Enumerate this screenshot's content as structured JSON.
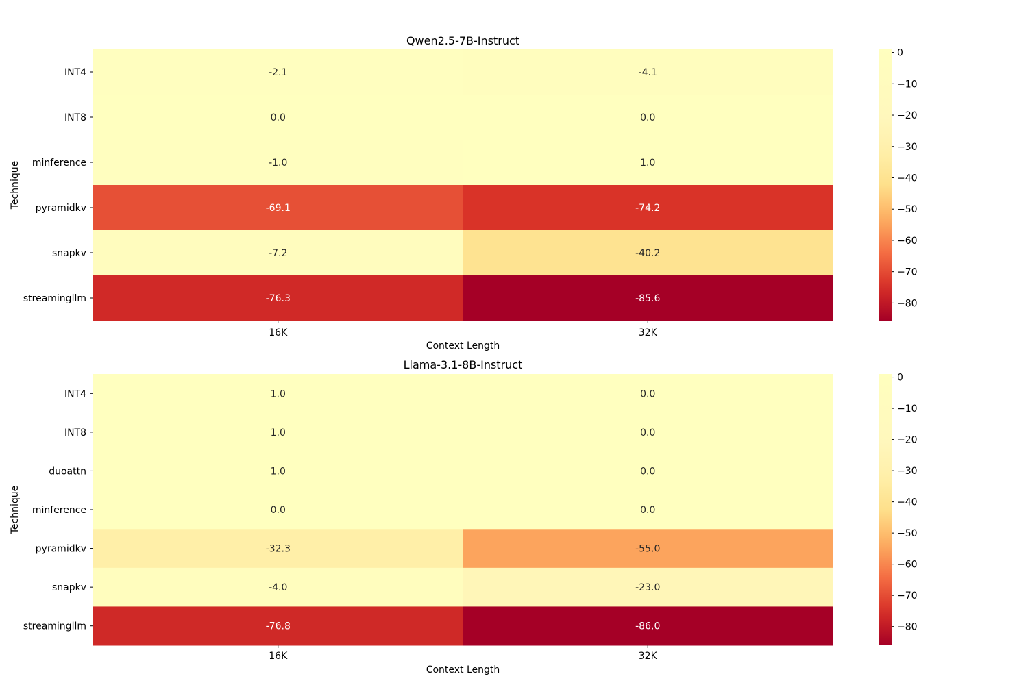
{
  "chart_data": [
    {
      "type": "heatmap",
      "title": "Qwen2.5-7B-Instruct",
      "xlabel": "Context Length",
      "ylabel": "Technique",
      "x": [
        "16K",
        "32K"
      ],
      "y": [
        "INT4",
        "INT8",
        "minference",
        "pyramidkv",
        "snapkv",
        "streamingllm"
      ],
      "values": [
        [
          -2.1,
          -4.1
        ],
        [
          0.0,
          0.0
        ],
        [
          -1.0,
          1.0
        ],
        [
          -69.1,
          -74.2
        ],
        [
          -7.2,
          -40.2
        ],
        [
          -76.3,
          -85.6
        ]
      ],
      "colorbar": {
        "ticks": [
          0,
          -10,
          -20,
          -30,
          -40,
          -50,
          -60,
          -70,
          -80
        ],
        "range": [
          -85.6,
          1.0
        ]
      },
      "colormap": "RdYlGn-like (yellow to dark red)"
    },
    {
      "type": "heatmap",
      "title": "Llama-3.1-8B-Instruct",
      "xlabel": "Context Length",
      "ylabel": "Technique",
      "x": [
        "16K",
        "32K"
      ],
      "y": [
        "INT4",
        "INT8",
        "duoattn",
        "minference",
        "pyramidkv",
        "snapkv",
        "streamingllm"
      ],
      "values": [
        [
          1.0,
          0.0
        ],
        [
          1.0,
          0.0
        ],
        [
          1.0,
          0.0
        ],
        [
          0.0,
          0.0
        ],
        [
          -32.3,
          -55.0
        ],
        [
          -4.0,
          -23.0
        ],
        [
          -76.8,
          -86.0
        ]
      ],
      "colorbar": {
        "ticks": [
          0,
          -10,
          -20,
          -30,
          -40,
          -50,
          -60,
          -70,
          -80
        ],
        "range": [
          -86.0,
          1.0
        ]
      },
      "colormap": "RdYlGn-like (yellow to dark red)"
    }
  ]
}
